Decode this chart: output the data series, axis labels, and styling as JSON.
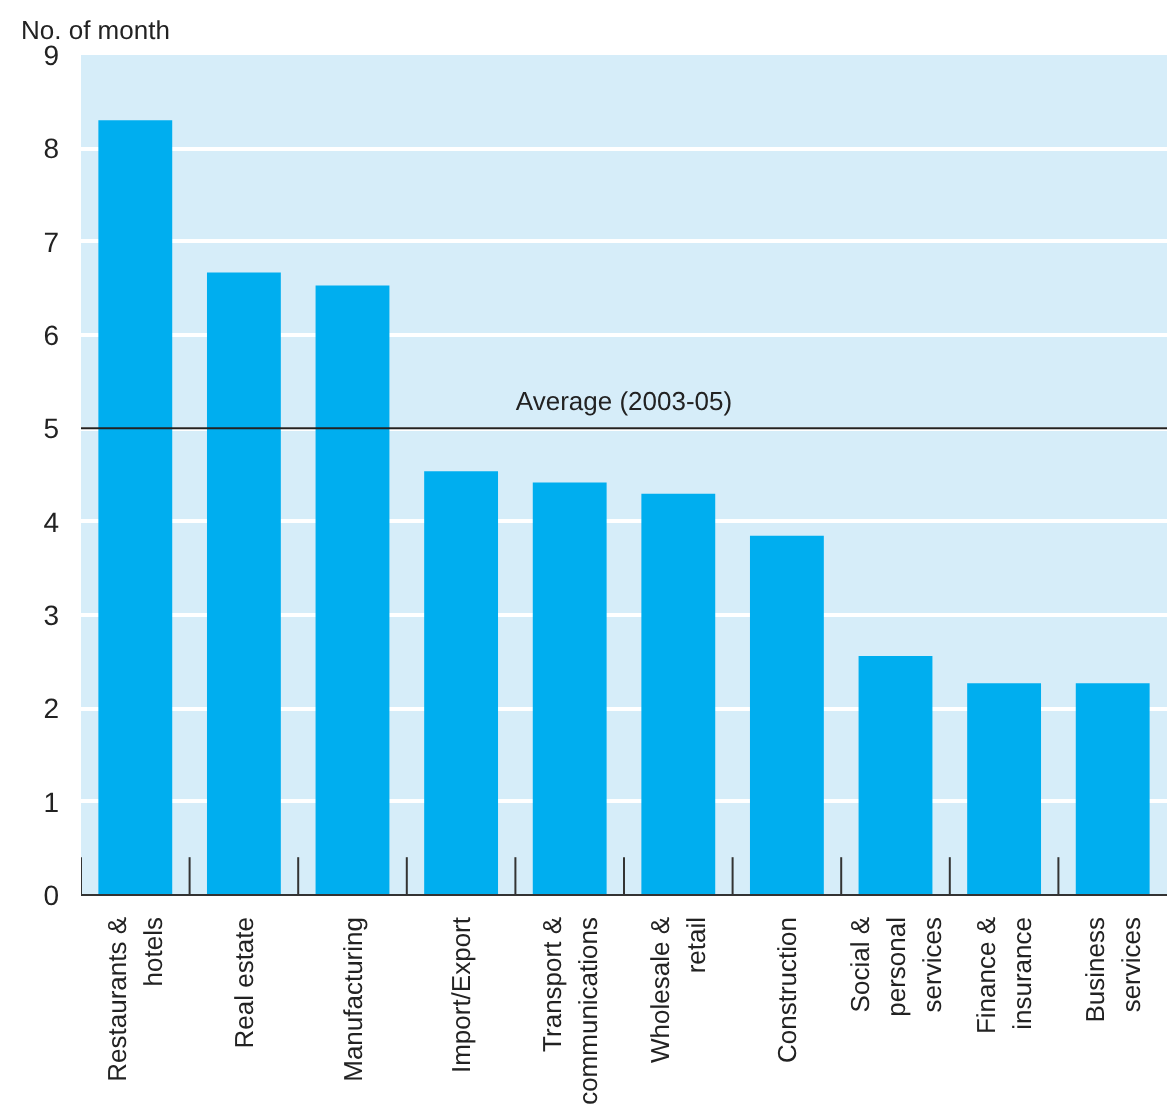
{
  "chart_data": {
    "type": "bar",
    "ylabel": "No. of month",
    "categories": [
      "Restaurants & hotels",
      "Real estate",
      "Manufacturing",
      "Import/Export",
      "Transport & communications",
      "Wholesale & retail",
      "Construction",
      "Social & personal services",
      "Finance & insurance",
      "Business services"
    ],
    "values": [
      8.3,
      6.67,
      6.53,
      4.54,
      4.42,
      4.3,
      3.85,
      2.56,
      2.27,
      2.27
    ],
    "color": "#00aeef",
    "ylim": [
      0,
      9
    ],
    "yticks": [
      0,
      1,
      2,
      3,
      4,
      5,
      6,
      7,
      8,
      9
    ],
    "grid": "y",
    "ref_lines": [
      {
        "axis": "y",
        "value": 5,
        "label": "Average (2003-05)",
        "color": "#222222"
      }
    ]
  }
}
